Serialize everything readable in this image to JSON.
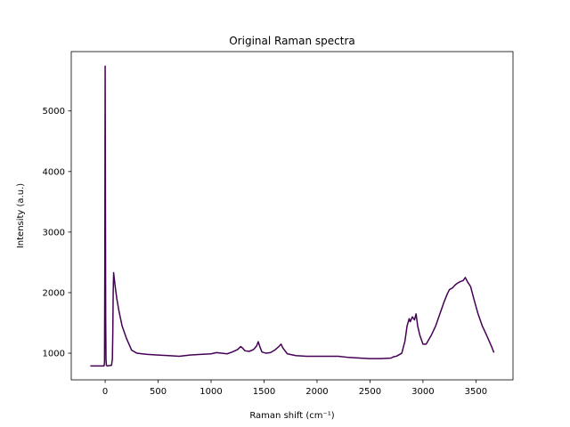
{
  "chart_data": {
    "type": "line",
    "title": "Original Raman spectra",
    "xlabel": "Raman shift (cm⁻¹)",
    "ylabel": "Intensity (a.u.)",
    "xlim": [
      -320,
      3850
    ],
    "ylim": [
      560,
      5980
    ],
    "xticks": [
      0,
      500,
      1000,
      1500,
      2000,
      2500,
      3000,
      3500
    ],
    "yticks": [
      1000,
      2000,
      3000,
      4000,
      5000
    ],
    "grid": false,
    "legend": "none",
    "series": [
      {
        "color": "#440154",
        "x": [
          -140,
          -10,
          -6,
          -3,
          0,
          2,
          5,
          8,
          12,
          20,
          60,
          68,
          72,
          76,
          80,
          85,
          95,
          110,
          130,
          160,
          200,
          250,
          300,
          350,
          400,
          500,
          600,
          700,
          800,
          900,
          1000,
          1050,
          1100,
          1150,
          1200,
          1250,
          1280,
          1300,
          1320,
          1360,
          1400,
          1430,
          1445,
          1460,
          1480,
          1520,
          1560,
          1600,
          1640,
          1660,
          1680,
          1720,
          1800,
          1900,
          2000,
          2100,
          2200,
          2300,
          2400,
          2500,
          2600,
          2700,
          2720,
          2750,
          2800,
          2830,
          2850,
          2870,
          2880,
          2900,
          2920,
          2935,
          2950,
          2970,
          3000,
          3030,
          3080,
          3120,
          3160,
          3200,
          3230,
          3250,
          3280,
          3300,
          3320,
          3350,
          3380,
          3400,
          3420,
          3450,
          3480,
          3520,
          3560,
          3600,
          3650,
          3670
        ],
        "y": [
          790,
          790,
          850,
          2500,
          5740,
          4200,
          1600,
          900,
          800,
          790,
          800,
          900,
          1300,
          2000,
          2330,
          2250,
          2100,
          1900,
          1700,
          1450,
          1250,
          1050,
          1000,
          990,
          980,
          970,
          960,
          950,
          970,
          980,
          990,
          1010,
          1000,
          990,
          1020,
          1060,
          1110,
          1080,
          1040,
          1030,
          1060,
          1120,
          1190,
          1110,
          1020,
          1000,
          1010,
          1050,
          1110,
          1150,
          1080,
          990,
          960,
          950,
          950,
          950,
          950,
          930,
          920,
          910,
          910,
          920,
          940,
          950,
          1000,
          1200,
          1450,
          1570,
          1520,
          1600,
          1550,
          1650,
          1450,
          1300,
          1150,
          1150,
          1300,
          1450,
          1650,
          1850,
          1980,
          2050,
          2080,
          2120,
          2150,
          2180,
          2200,
          2250,
          2180,
          2100,
          1900,
          1650,
          1450,
          1300,
          1100,
          1010
        ]
      }
    ]
  }
}
